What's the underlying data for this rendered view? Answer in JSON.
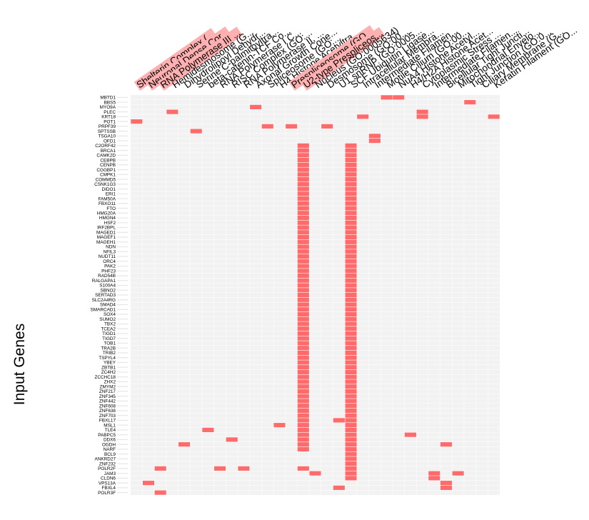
{
  "chart_data": {
    "type": "heatmap",
    "title": "",
    "xlabel": "",
    "ylabel": "Input Genes",
    "legend": "none",
    "grid": true,
    "colors": {
      "hit": "#ff6b6b",
      "empty": "#f2f2f2",
      "grid_line": "#ffffff",
      "highlight_bg": "#ffb0b0"
    },
    "columns": [
      "Shelterin Complex (...",
      "Neuronal Dense Cor...",
      "RNA Polymerase III ...",
      "Hemidesmosome (G...",
      "Dihydrolipoyl Dehydr...",
      "Serine C-palmitoyltra...",
      "beta-catenin-TCF Co...",
      "RNA Polymerase I C...",
      "RISC Complex (GO:...",
      "RNA Polymerase II, ...",
      "Axonal Growth Cone...",
      "Spliceosome (GO:...",
      "H4 Histone Acetyltra...",
      "Prespliceosome (GO...",
      "U2-type Prespliceos...",
      "Nucleus (GO:0005634)",
      "Desmosome (GO:00...",
      "U1 snRNP (GO:0005...",
      "SCF Ubiquitin Ligase...",
      "Intracellular Membra...",
      "Intermediate Filamen...",
      "Motile Cilium (GO:00...",
      "NuA4 Histone Acetyl...",
      "H4/H2A Histone Acet...",
      "Cytoplasmic Stress ...",
      "Intermediate Filamen...",
      "Bicellular Tight Juncti...",
      "Mitochondrial Envelo...",
      "Tight Junction (GO:0...",
      "Ciliary Membrane (G...",
      "Keratin Filament (GO..."
    ],
    "highlighted_columns": [
      0,
      1,
      2,
      13,
      14
    ],
    "rows": [
      "MBTD1",
      "BBS5",
      "MYO9A",
      "PLEC",
      "KRT18",
      "POT1",
      "PRPF39",
      "SPTSSB",
      "TSGA10",
      "OFD1",
      "C2ORF42",
      "BRCA1",
      "CAMK2D",
      "CEBPB",
      "CENPB",
      "CGGBP1",
      "CMPK1",
      "COMMD5",
      "CSNK1G3",
      "DIDO1",
      "ERI1",
      "FAM50A",
      "FBXO11",
      "FTO",
      "HMG20A",
      "HMGN4",
      "HSF2",
      "IRF2BPL",
      "MAGED1",
      "MAGEF1",
      "MAGEH1",
      "NDN",
      "NFIL3",
      "NUDT11",
      "ORC4",
      "PAK2",
      "PHF23",
      "RAD54B",
      "RALGAPA1",
      "S100A4",
      "SBNO2",
      "SERTAD3",
      "SLC2A4RG",
      "SMAD4",
      "SMARCAD1",
      "SOX4",
      "SUMO2",
      "TBX2",
      "TCEA2",
      "TIGD1",
      "TIGD7",
      "TOB1",
      "TRA2B",
      "TRIB2",
      "TSPYL4",
      "YBEY",
      "ZBTB1",
      "ZC4H2",
      "ZCCHC18",
      "ZHX2",
      "ZMYM2",
      "ZNF217",
      "ZNF345",
      "ZNF442",
      "ZNF608",
      "ZNF638",
      "ZNF703",
      "FBXL17",
      "MSL1",
      "TLE4",
      "PABPC5",
      "DDX6",
      "OGDH",
      "NARF",
      "BCL9",
      "ANKRD27",
      "ZNF232",
      "POLR2F",
      "JAM3",
      "CLDN6",
      "VPS13A",
      "FBXL4",
      "POLR3F"
    ],
    "cells": [
      [
        0,
        21
      ],
      [
        0,
        22
      ],
      [
        1,
        28
      ],
      [
        2,
        10
      ],
      [
        3,
        3
      ],
      [
        3,
        24
      ],
      [
        4,
        19
      ],
      [
        4,
        24
      ],
      [
        4,
        30
      ],
      [
        5,
        0
      ],
      [
        6,
        11
      ],
      [
        6,
        13
      ],
      [
        6,
        16
      ],
      [
        7,
        5
      ],
      [
        8,
        20
      ],
      [
        9,
        20
      ],
      [
        67,
        17
      ],
      [
        68,
        12
      ],
      [
        69,
        6
      ],
      [
        70,
        23
      ],
      [
        71,
        8
      ],
      [
        72,
        4
      ],
      [
        72,
        26
      ],
      [
        77,
        2
      ],
      [
        77,
        7
      ],
      [
        77,
        9
      ],
      [
        78,
        15
      ],
      [
        78,
        25
      ],
      [
        78,
        27
      ],
      [
        79,
        25
      ],
      [
        80,
        1
      ],
      [
        80,
        26
      ],
      [
        81,
        17
      ],
      [
        81,
        26
      ],
      [
        82,
        2
      ]
    ],
    "column_runs": [
      {
        "column": 14,
        "from_row": 10,
        "to_row": 73
      },
      {
        "column": 18,
        "from_row": 10,
        "to_row": 73
      },
      {
        "column": 18,
        "from_row": 74,
        "to_row": 79
      },
      {
        "column": 14,
        "from_row": 77,
        "to_row": 77
      }
    ]
  }
}
